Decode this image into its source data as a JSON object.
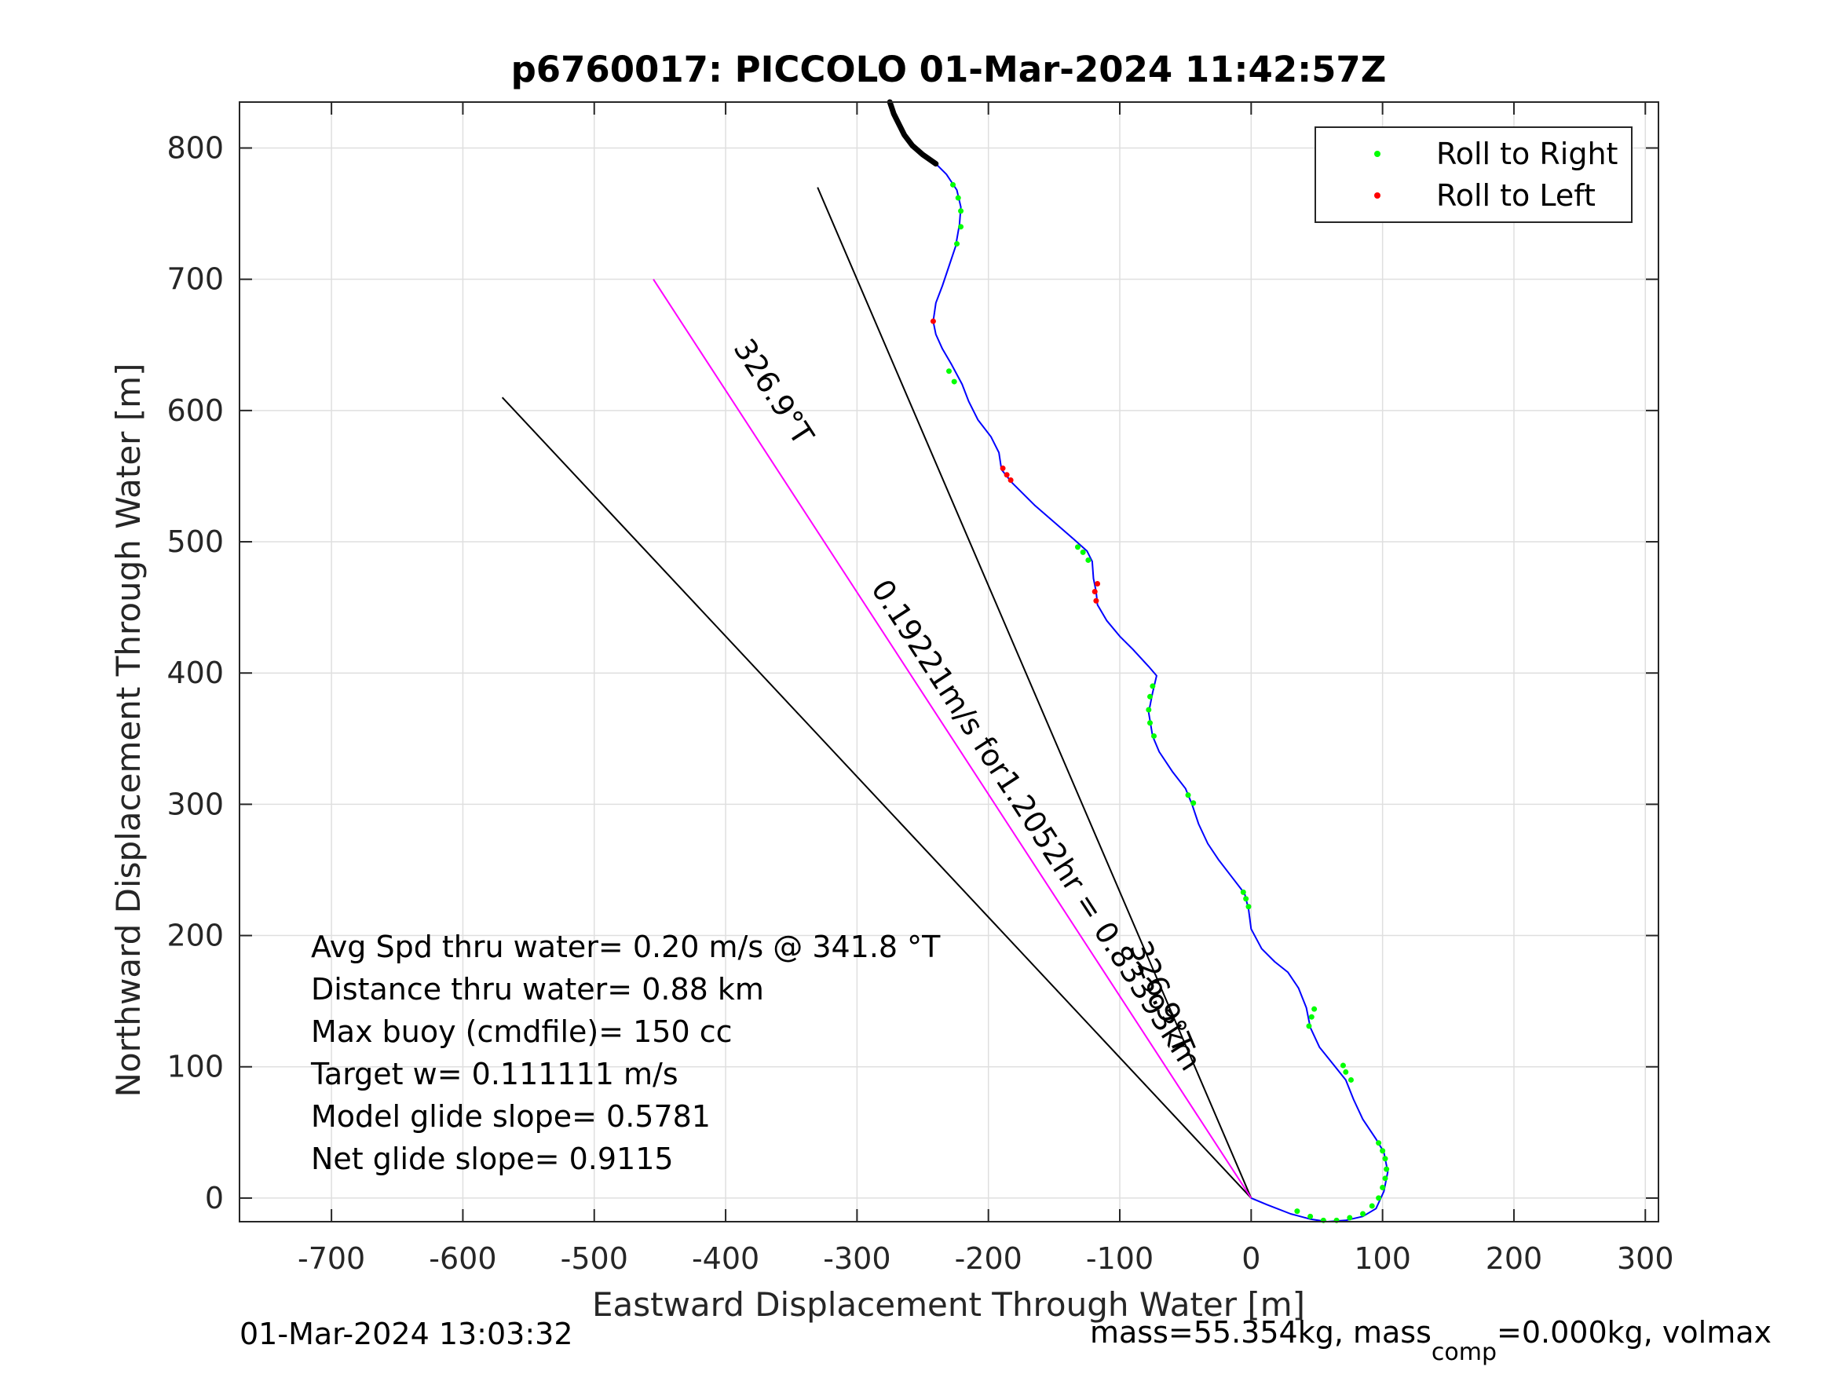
{
  "chart_data": {
    "type": "line",
    "title": "p6760017: PICCOLO 01-Mar-2024 11:42:57Z",
    "xlabel": "Eastward Displacement Through Water [m]",
    "ylabel": "Northward Displacement Through Water [m]",
    "xlim": [
      -770,
      310
    ],
    "ylim": [
      -18,
      835
    ],
    "xticks": [
      -700,
      -600,
      -500,
      -400,
      -300,
      -200,
      -100,
      0,
      100,
      200,
      300
    ],
    "yticks": [
      0,
      100,
      200,
      300,
      400,
      500,
      600,
      700,
      800
    ],
    "xtick_labels": [
      "-700",
      "-600",
      "-500",
      "-400",
      "-300",
      "-200",
      "-100",
      "0",
      "100",
      "200",
      "300"
    ],
    "ytick_labels": [
      "0",
      "100",
      "200",
      "300",
      "400",
      "500",
      "600",
      "700",
      "800"
    ],
    "grid": true,
    "legend_position": "top-right",
    "legend": [
      {
        "label": "Roll to Right",
        "color": "#00ff00"
      },
      {
        "label": "Roll to Left",
        "color": "#ff0000"
      }
    ],
    "track": {
      "color": "#0000ff",
      "points": [
        [
          0,
          0
        ],
        [
          12,
          -5
        ],
        [
          30,
          -12
        ],
        [
          45,
          -16
        ],
        [
          58,
          -18
        ],
        [
          72,
          -17
        ],
        [
          85,
          -14
        ],
        [
          95,
          -8
        ],
        [
          101,
          5
        ],
        [
          104,
          20
        ],
        [
          101,
          35
        ],
        [
          95,
          45
        ],
        [
          85,
          60
        ],
        [
          78,
          75
        ],
        [
          72,
          90
        ],
        [
          64,
          100
        ],
        [
          52,
          115
        ],
        [
          45,
          130
        ],
        [
          42,
          145
        ],
        [
          36,
          160
        ],
        [
          28,
          172
        ],
        [
          18,
          180
        ],
        [
          8,
          190
        ],
        [
          0,
          205
        ],
        [
          -2,
          220
        ],
        [
          -5,
          232
        ],
        [
          -15,
          245
        ],
        [
          -25,
          258
        ],
        [
          -33,
          270
        ],
        [
          -40,
          285
        ],
        [
          -45,
          300
        ],
        [
          -50,
          312
        ],
        [
          -60,
          325
        ],
        [
          -70,
          340
        ],
        [
          -75,
          352
        ],
        [
          -78,
          370
        ],
        [
          -75,
          385
        ],
        [
          -72,
          398
        ],
        [
          -78,
          405
        ],
        [
          -90,
          418
        ],
        [
          -100,
          428
        ],
        [
          -110,
          440
        ],
        [
          -117,
          452
        ],
        [
          -118,
          462
        ],
        [
          -120,
          472
        ],
        [
          -121,
          485
        ],
        [
          -125,
          493
        ],
        [
          -135,
          502
        ],
        [
          -150,
          515
        ],
        [
          -165,
          528
        ],
        [
          -182,
          545
        ],
        [
          -190,
          555
        ],
        [
          -192,
          568
        ],
        [
          -198,
          580
        ],
        [
          -208,
          593
        ],
        [
          -215,
          607
        ],
        [
          -220,
          620
        ],
        [
          -228,
          635
        ],
        [
          -235,
          647
        ],
        [
          -240,
          658
        ],
        [
          -242,
          668
        ],
        [
          -240,
          682
        ],
        [
          -235,
          695
        ],
        [
          -230,
          710
        ],
        [
          -225,
          725
        ],
        [
          -222,
          742
        ],
        [
          -221,
          755
        ],
        [
          -224,
          768
        ],
        [
          -232,
          780
        ],
        [
          -240,
          788
        ]
      ]
    },
    "drift_track": {
      "color": "#000000",
      "points": [
        [
          -240,
          788
        ],
        [
          -250,
          795
        ],
        [
          -258,
          802
        ],
        [
          -264,
          810
        ],
        [
          -268,
          818
        ],
        [
          -272,
          826
        ],
        [
          -275,
          835
        ]
      ]
    },
    "roll_right_points": [
      [
        35,
        -10
      ],
      [
        45,
        -14
      ],
      [
        55,
        -17
      ],
      [
        65,
        -17
      ],
      [
        75,
        -15
      ],
      [
        85,
        -12
      ],
      [
        92,
        -6
      ],
      [
        97,
        0
      ],
      [
        100,
        8
      ],
      [
        102,
        15
      ],
      [
        103,
        22
      ],
      [
        102,
        30
      ],
      [
        100,
        36
      ],
      [
        97,
        42
      ],
      [
        76,
        90
      ],
      [
        72,
        96
      ],
      [
        70,
        101
      ],
      [
        44,
        131
      ],
      [
        46,
        138
      ],
      [
        48,
        144
      ],
      [
        -2,
        222
      ],
      [
        -4,
        228
      ],
      [
        -6,
        233
      ],
      [
        -44,
        301
      ],
      [
        -48,
        307
      ],
      [
        -74,
        352
      ],
      [
        -77,
        362
      ],
      [
        -78,
        372
      ],
      [
        -77,
        382
      ],
      [
        -75,
        390
      ],
      [
        -124,
        486
      ],
      [
        -128,
        492
      ],
      [
        -132,
        496
      ],
      [
        -226,
        622
      ],
      [
        -230,
        630
      ],
      [
        -224,
        727
      ],
      [
        -221,
        740
      ],
      [
        -221,
        752
      ],
      [
        -223,
        762
      ],
      [
        -227,
        772
      ]
    ],
    "roll_left_points": [
      [
        -118,
        455
      ],
      [
        -119,
        462
      ],
      [
        -117,
        468
      ],
      [
        -183,
        547
      ],
      [
        -186,
        551
      ],
      [
        -189,
        556
      ],
      [
        -242,
        668
      ]
    ],
    "reference_lines": [
      {
        "from": [
          0,
          0
        ],
        "to": [
          -570,
          610
        ],
        "color": "#000000"
      },
      {
        "from": [
          0,
          0
        ],
        "to": [
          -330,
          770
        ],
        "color": "#000000"
      },
      {
        "from": [
          0,
          0
        ],
        "to": [
          -455,
          700
        ],
        "color": "#ff00ff"
      }
    ],
    "line_labels": [
      {
        "text": "326.9°T",
        "anchor": [
          -370,
          610
        ],
        "angle_deg": 57
      },
      {
        "text": "0.19221m/s for1.2052hr = 0.83393km",
        "anchor": [
          -170,
          280
        ],
        "angle_deg": 57
      },
      {
        "text": "326.9°T",
        "anchor": [
          -75,
          150
        ],
        "angle_deg": 67
      }
    ],
    "annotations": [
      "Avg Spd thru water=  0.20 m/s @ 341.8 °T",
      "Distance thru water=  0.88 km",
      "Max buoy (cmdfile)= 150 cc",
      "Target w= 0.111111 m/s",
      "Model glide slope= 0.5781",
      "Net glide slope= 0.9115"
    ]
  },
  "footer": {
    "timestamp": "01-Mar-2024 13:03:32",
    "mass_text": "mass=55.354kg, mass",
    "mass_sub": "comp",
    "mass_tail": "=0.000kg, volmax"
  }
}
